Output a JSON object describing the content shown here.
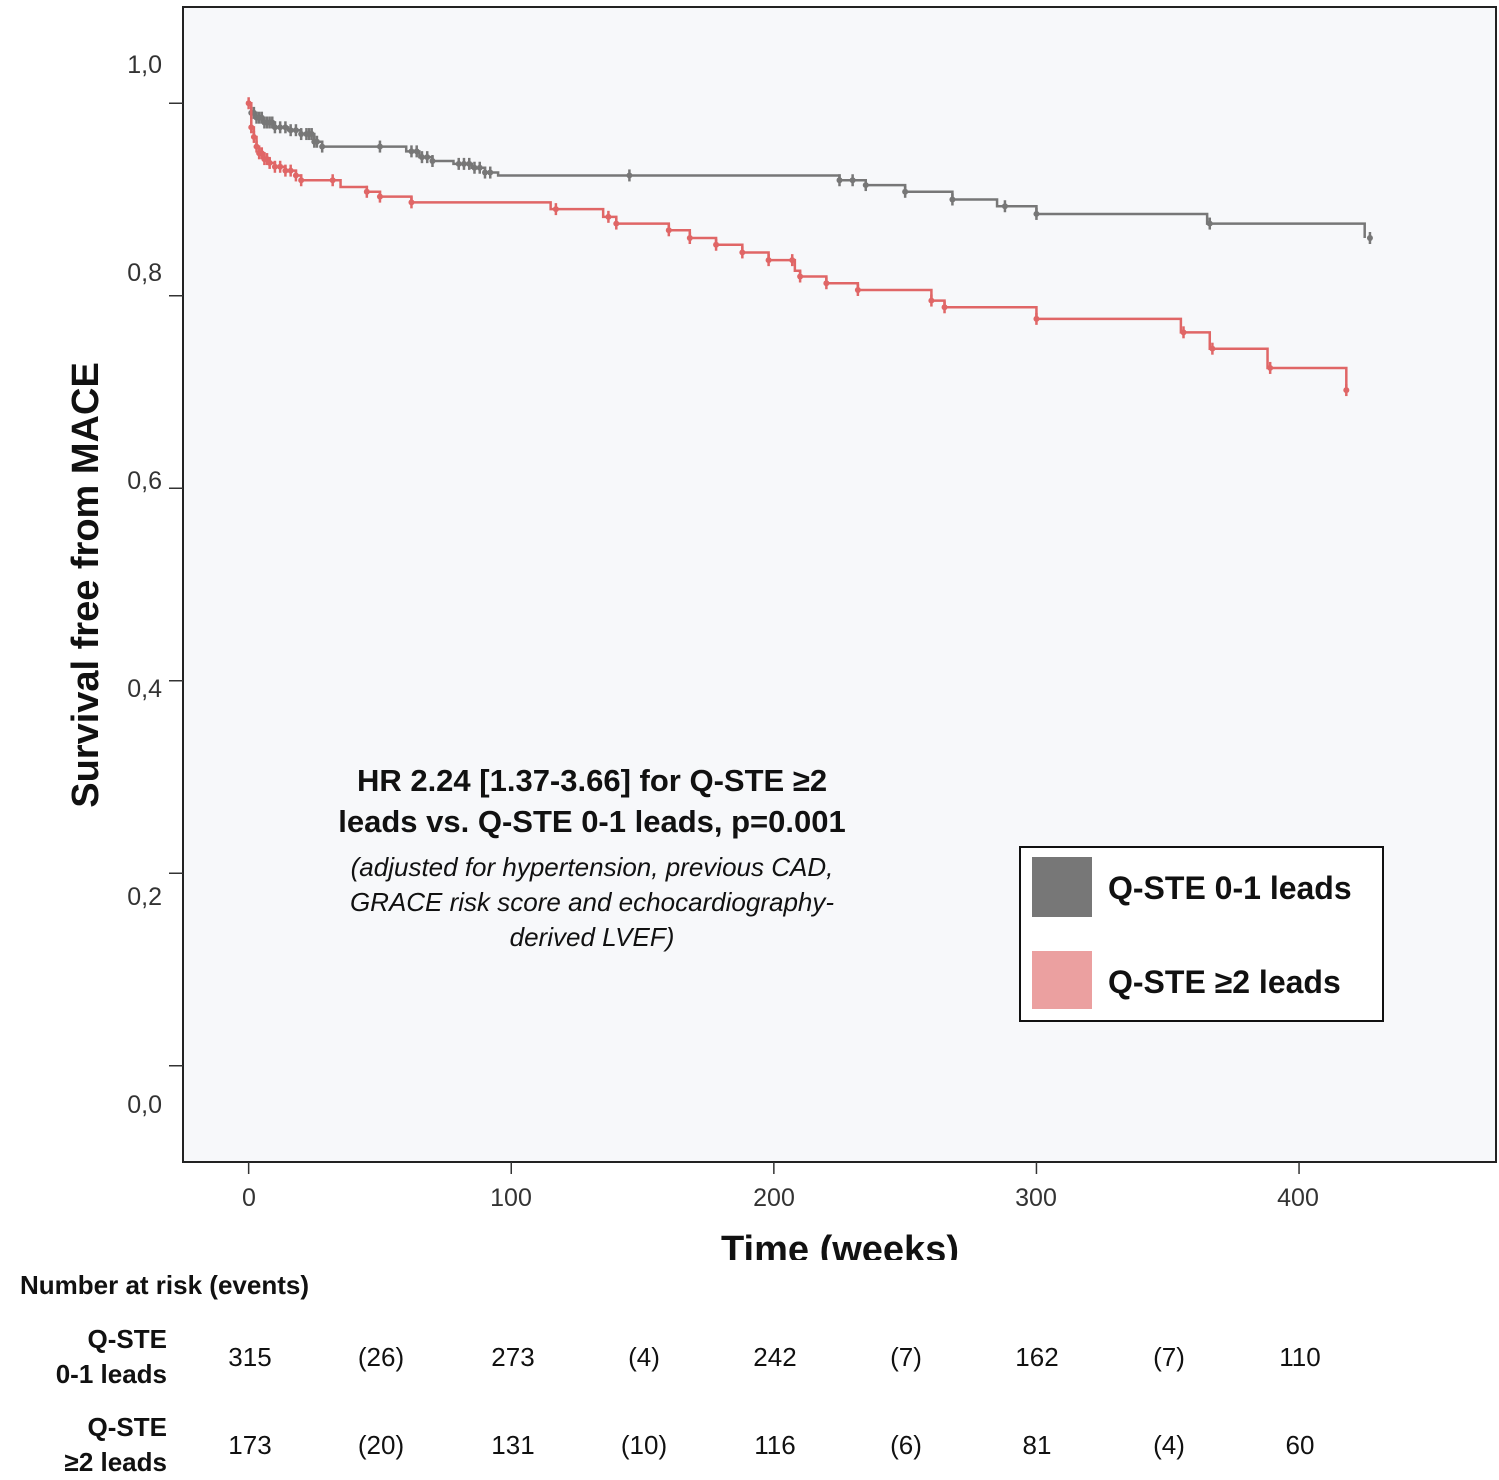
{
  "chart_data": {
    "type": "line",
    "subtype": "kaplan-meier",
    "title": "",
    "xlabel": "Time (weeks)",
    "ylabel": "Survival free from MACE",
    "xlim": [
      -25,
      475
    ],
    "ylim": [
      -0.1,
      1.1
    ],
    "x_ticks": [
      0,
      100,
      200,
      300,
      400
    ],
    "x_tick_labels": [
      "0",
      "100",
      "200",
      "300",
      "400"
    ],
    "y_ticks": [
      0,
      0.2,
      0.4,
      0.6,
      0.8,
      1.0
    ],
    "y_tick_labels": [
      "0,0",
      "0,2",
      "0,4",
      "0,6",
      "0,8",
      "1,0"
    ],
    "grid": false,
    "background": "#f7f8fa",
    "legend_position": "bottom-right",
    "series": [
      {
        "name": "Q-STE 0-1 leads",
        "color": "#777777",
        "steps": [
          [
            0,
            1.0
          ],
          [
            1,
            0.99
          ],
          [
            3,
            0.985
          ],
          [
            6,
            0.98
          ],
          [
            10,
            0.975
          ],
          [
            15,
            0.972
          ],
          [
            20,
            0.968
          ],
          [
            25,
            0.96
          ],
          [
            28,
            0.955
          ],
          [
            60,
            0.95
          ],
          [
            65,
            0.944
          ],
          [
            70,
            0.94
          ],
          [
            78,
            0.937
          ],
          [
            85,
            0.933
          ],
          [
            90,
            0.928
          ],
          [
            95,
            0.925
          ],
          [
            225,
            0.92
          ],
          [
            235,
            0.915
          ],
          [
            250,
            0.908
          ],
          [
            268,
            0.9
          ],
          [
            285,
            0.893
          ],
          [
            300,
            0.885
          ],
          [
            365,
            0.875
          ],
          [
            425,
            0.86
          ]
        ],
        "censor_times": [
          1,
          2,
          3,
          4,
          5,
          6,
          7,
          8,
          9,
          10,
          12,
          14,
          16,
          18,
          20,
          22,
          23,
          24,
          25,
          26,
          28,
          50,
          62,
          64,
          66,
          68,
          70,
          80,
          82,
          84,
          86,
          88,
          90,
          92,
          145,
          225,
          230,
          235,
          250,
          268,
          288,
          300,
          366,
          427
        ]
      },
      {
        "name": "Q-STE ≥2 leads",
        "color": "#e06666",
        "steps": [
          [
            0,
            1.0
          ],
          [
            1,
            0.975
          ],
          [
            2,
            0.965
          ],
          [
            3,
            0.955
          ],
          [
            4,
            0.948
          ],
          [
            6,
            0.942
          ],
          [
            8,
            0.938
          ],
          [
            10,
            0.934
          ],
          [
            14,
            0.93
          ],
          [
            18,
            0.925
          ],
          [
            20,
            0.92
          ],
          [
            35,
            0.913
          ],
          [
            45,
            0.908
          ],
          [
            50,
            0.903
          ],
          [
            62,
            0.897
          ],
          [
            115,
            0.89
          ],
          [
            135,
            0.882
          ],
          [
            140,
            0.875
          ],
          [
            160,
            0.868
          ],
          [
            168,
            0.86
          ],
          [
            178,
            0.853
          ],
          [
            188,
            0.845
          ],
          [
            198,
            0.837
          ],
          [
            208,
            0.826
          ],
          [
            210,
            0.82
          ],
          [
            220,
            0.813
          ],
          [
            232,
            0.806
          ],
          [
            260,
            0.795
          ],
          [
            265,
            0.788
          ],
          [
            300,
            0.776
          ],
          [
            355,
            0.762
          ],
          [
            366,
            0.745
          ],
          [
            388,
            0.725
          ],
          [
            418,
            0.702
          ]
        ],
        "censor_times": [
          0,
          1,
          2,
          3,
          4,
          5,
          6,
          7,
          8,
          10,
          12,
          14,
          16,
          18,
          20,
          32,
          45,
          50,
          62,
          117,
          137,
          140,
          160,
          168,
          178,
          188,
          198,
          207,
          210,
          220,
          232,
          260,
          265,
          300,
          356,
          367,
          389,
          418
        ]
      }
    ],
    "annotations": {
      "hr_line1": "HR 2.24 [1.37-3.66] for Q-STE ≥2",
      "hr_line2": "leads vs. Q-STE 0-1 leads, p=0.001",
      "adj_line1": "(adjusted for hypertension, previous CAD,",
      "adj_line2": "GRACE risk score and echocardiography-",
      "adj_line3": "derived LVEF)"
    },
    "risk_table": {
      "title": "Number at risk (events)",
      "rows": [
        {
          "label_line1": "Q-STE",
          "label_line2": "0-1 leads",
          "values": [
            "315",
            "(26)",
            "273",
            "(4)",
            "242",
            "(7)",
            "162",
            "(7)",
            "110"
          ]
        },
        {
          "label_line1": "Q-STE",
          "label_line2": "≥2 leads",
          "values": [
            "173",
            "(20)",
            "131",
            "(10)",
            "116",
            "(6)",
            "81",
            "(4)",
            "60"
          ]
        }
      ]
    }
  }
}
